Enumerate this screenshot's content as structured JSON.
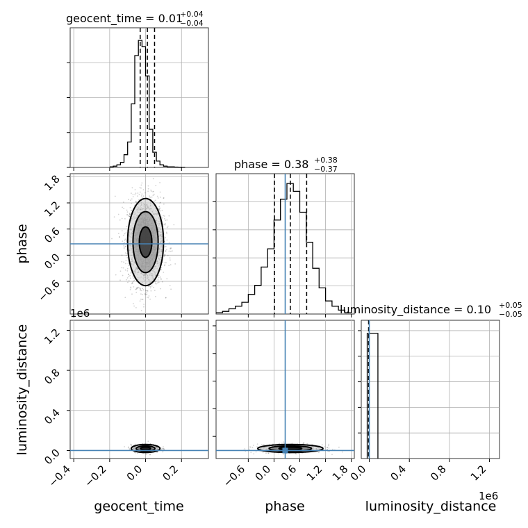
{
  "chart_data": {
    "type": "corner",
    "parameters": [
      "geocent_time",
      "phase",
      "luminosity_distance"
    ],
    "axis_labels": {
      "geocent_time": "geocent_time",
      "phase": "phase",
      "luminosity_distance": "luminosity_distance"
    },
    "titles": [
      {
        "param": "geocent_time",
        "text": "geocent_time = 0.01",
        "plus": "+0.04",
        "minus": "−0.04"
      },
      {
        "param": "phase",
        "text": "phase = 0.38",
        "plus": "+0.38",
        "minus": "−0.37"
      },
      {
        "param": "luminosity_distance",
        "text": "luminosity_distance = 0.10",
        "plus": "+0.05",
        "minus": "−0.05"
      }
    ],
    "offset_labels": [
      "1e6",
      "1e6"
    ],
    "ranges": {
      "geocent_time": [
        -0.42,
        0.35
      ],
      "phase": [
        -1.35,
        1.87
      ],
      "luminosity_distance": [
        -0.08,
        1.3
      ]
    },
    "ticks": {
      "geocent_time": [
        -0.4,
        -0.2,
        0.0,
        0.2
      ],
      "phase_x": [
        -0.6,
        0.0,
        0.6,
        1.2,
        1.8
      ],
      "phase_y": [
        -0.6,
        0.0,
        0.6,
        1.2,
        1.8
      ],
      "luminosity_distance_x": [
        0.0,
        0.4,
        0.8,
        1.2
      ],
      "luminosity_distance_y": [
        0.0,
        0.4,
        0.8,
        1.2
      ]
    },
    "tick_labels": {
      "geocent_time": [
        "−0.4",
        "−0.2",
        "0.0",
        "0.2"
      ],
      "phase_x": [
        "−0.6",
        "0.0",
        "0.6",
        "1.2",
        "1.8"
      ],
      "phase_y": [
        "−0.6",
        "0.0",
        "0.6",
        "1.2",
        "1.8"
      ],
      "luminosity_distance_x": [
        "0.0",
        "0.4",
        "0.8",
        "1.2"
      ],
      "luminosity_distance_y": [
        "0.0",
        "0.4",
        "0.8",
        "1.2"
      ]
    },
    "truths": {
      "geocent_time": null,
      "phase": 0.26,
      "luminosity_distance": 0.0
    },
    "quantiles": {
      "geocent_time": [
        -0.03,
        0.01,
        0.05
      ],
      "phase": [
        0.01,
        0.38,
        0.76
      ],
      "luminosity_distance": [
        0.05,
        0.1,
        0.15
      ]
    },
    "histograms": {
      "geocent_time": {
        "edges": [
          -0.2,
          -0.18,
          -0.16,
          -0.14,
          -0.12,
          -0.1,
          -0.08,
          -0.06,
          -0.04,
          -0.02,
          0.0,
          0.02,
          0.04,
          0.06,
          0.08,
          0.1,
          0.12,
          0.14,
          0.16,
          0.18,
          0.2,
          0.22
        ],
        "counts": [
          0.005,
          0.01,
          0.02,
          0.04,
          0.1,
          0.2,
          0.5,
          0.88,
          1.0,
          0.95,
          0.72,
          0.3,
          0.12,
          0.05,
          0.02,
          0.01,
          0.005,
          0.005,
          0.003,
          0.002,
          0.001
        ]
      },
      "phase": {
        "edges": [
          -1.35,
          -1.2,
          -1.05,
          -0.9,
          -0.75,
          -0.6,
          -0.45,
          -0.3,
          -0.15,
          0.0,
          0.15,
          0.3,
          0.45,
          0.6,
          0.75,
          0.9,
          1.05,
          1.2,
          1.35,
          1.5,
          1.65,
          1.8
        ],
        "counts": [
          0.01,
          0.02,
          0.04,
          0.06,
          0.09,
          0.15,
          0.22,
          0.36,
          0.5,
          0.72,
          0.88,
          1.0,
          0.94,
          0.78,
          0.55,
          0.35,
          0.2,
          0.1,
          0.06,
          0.03,
          0.01
        ]
      },
      "luminosity_distance": {
        "edges": [
          0.0,
          0.05,
          0.1,
          0.15
        ],
        "counts": [
          1.0,
          1.0,
          0.0
        ]
      }
    },
    "scatter_summary": {
      "phase_vs_geocent_time": {
        "center": [
          0.0,
          0.3
        ],
        "spread": [
          0.05,
          0.5
        ]
      },
      "luminosity_distance_vs_geocent_time": {
        "center": [
          0.0,
          0.02
        ],
        "spread": [
          0.04,
          0.02
        ]
      },
      "luminosity_distance_vs_phase": {
        "center": [
          0.38,
          0.02
        ],
        "spread": [
          0.38,
          0.02
        ]
      }
    }
  }
}
